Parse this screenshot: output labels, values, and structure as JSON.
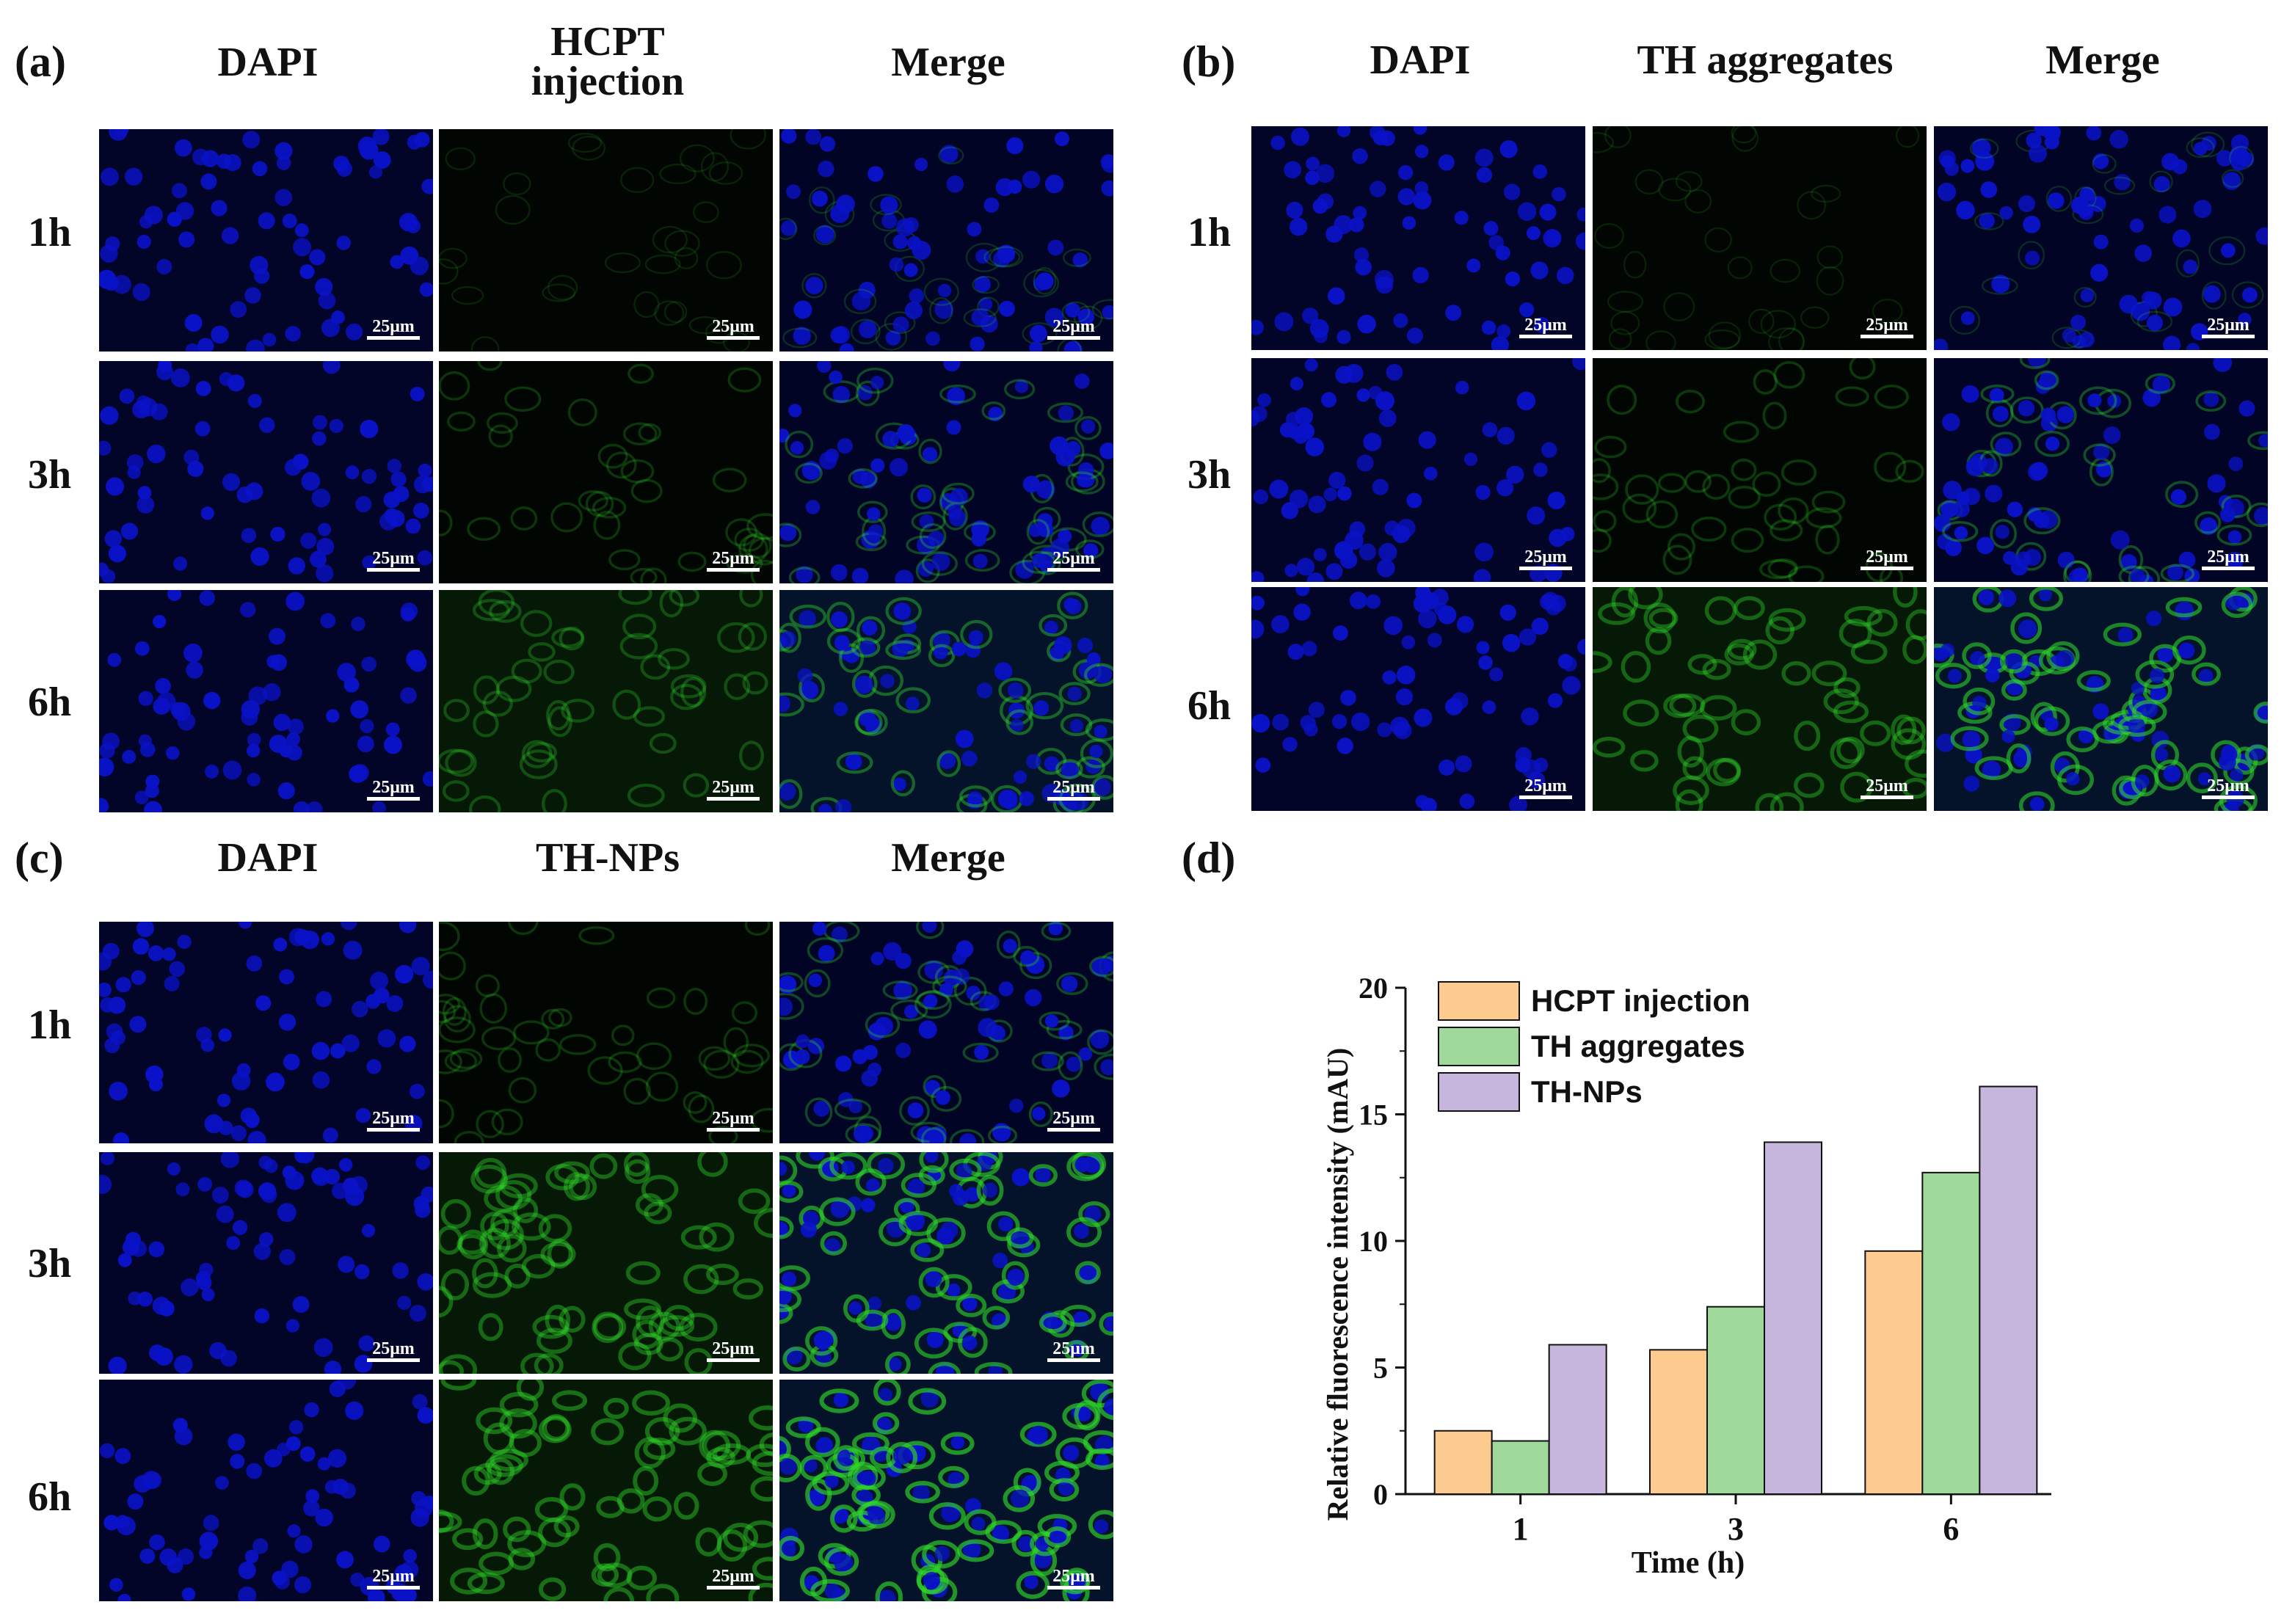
{
  "panels": {
    "a": {
      "label": "(a)",
      "columns": [
        "DAPI",
        "HCPT\ninjection",
        "Merge"
      ],
      "rows": [
        "1h",
        "3h",
        "6h"
      ],
      "scale_bar": "25μm"
    },
    "b": {
      "label": "(b)",
      "columns": [
        "DAPI",
        "TH aggregates",
        "Merge"
      ],
      "rows": [
        "1h",
        "3h",
        "6h"
      ],
      "scale_bar": "25μm"
    },
    "c": {
      "label": "(c)",
      "columns": [
        "DAPI",
        "TH-NPs",
        "Merge"
      ],
      "rows": [
        "1h",
        "3h",
        "6h"
      ],
      "scale_bar": "25μm"
    },
    "d": {
      "label": "(d)"
    }
  },
  "colors": {
    "dapi": "#0a12c8",
    "green": "#2fd82a",
    "hcpt": "#fdcb8f",
    "aggregates": "#9ed89a",
    "nps": "#c6b5dc"
  },
  "green_intensity": {
    "a": [
      0.1,
      0.35,
      0.55
    ],
    "b": [
      0.08,
      0.4,
      0.85
    ],
    "c": [
      0.35,
      0.9,
      1.0
    ]
  },
  "chart_data": {
    "type": "bar",
    "categories": [
      "1",
      "3",
      "6"
    ],
    "series": [
      {
        "name": "HCPT injection",
        "values": [
          2.5,
          5.7,
          9.6
        ],
        "color": "#fdcb8f"
      },
      {
        "name": "TH aggregates",
        "values": [
          2.1,
          7.4,
          12.7
        ],
        "color": "#9ed89a"
      },
      {
        "name": "TH-NPs",
        "values": [
          5.9,
          13.9,
          16.1
        ],
        "color": "#c6b5dc"
      }
    ],
    "xlabel": "Time (h)",
    "ylabel": "Relative fluorescence intensity (mAU)",
    "ylim": [
      0,
      20
    ],
    "yticks": [
      "0",
      "5",
      "10",
      "15",
      "20"
    ],
    "legend_position": "top-left",
    "grid": false
  }
}
